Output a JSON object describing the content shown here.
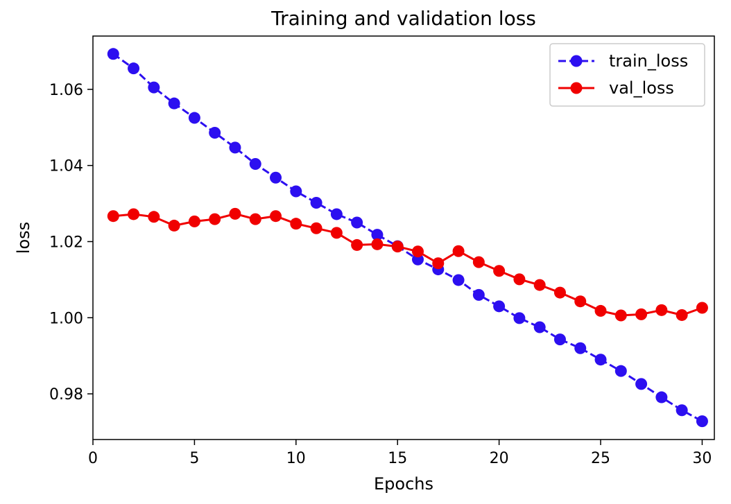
{
  "chart_data": {
    "type": "line",
    "title": "Training and validation loss",
    "xlabel": "Epochs",
    "ylabel": "loss",
    "xlim": [
      0,
      30.6
    ],
    "ylim": [
      0.968,
      1.074
    ],
    "xticks": [
      0,
      5,
      10,
      15,
      20,
      25,
      30
    ],
    "yticks": [
      0.98,
      1.0,
      1.02,
      1.04,
      1.06
    ],
    "ytick_labels": [
      "0.98",
      "1.00",
      "1.02",
      "1.04",
      "1.06"
    ],
    "legend_position": "top-right",
    "grid": false,
    "x": [
      1,
      2,
      3,
      4,
      5,
      6,
      7,
      8,
      9,
      10,
      11,
      12,
      13,
      14,
      15,
      16,
      17,
      18,
      19,
      20,
      21,
      22,
      23,
      24,
      25,
      26,
      27,
      28,
      29,
      30
    ],
    "series": [
      {
        "name": "train_loss",
        "color": "#2c0ff0",
        "line_style": "dashed",
        "marker": "circle",
        "values": [
          1.0693,
          1.0655,
          1.0605,
          1.0563,
          1.0525,
          1.0486,
          1.0447,
          1.0404,
          1.0368,
          1.0332,
          1.0302,
          1.0272,
          1.025,
          1.0218,
          1.0188,
          1.0153,
          1.0127,
          1.0099,
          1.006,
          1.003,
          0.9999,
          0.9975,
          0.9943,
          0.992,
          0.989,
          0.986,
          0.9826,
          0.9791,
          0.9757,
          0.9728
        ]
      },
      {
        "name": "val_loss",
        "color": "#f00000",
        "line_style": "solid",
        "marker": "circle",
        "values": [
          1.0267,
          1.0272,
          1.0265,
          1.0242,
          1.0253,
          1.0259,
          1.0273,
          1.0259,
          1.0267,
          1.0247,
          1.0235,
          1.0223,
          1.0191,
          1.0193,
          1.0187,
          1.0174,
          1.0143,
          1.0175,
          1.0146,
          1.0123,
          1.0101,
          1.0086,
          1.0066,
          1.0043,
          1.0018,
          1.0006,
          1.0009,
          1.002,
          1.0007,
          1.0026
        ]
      }
    ]
  }
}
